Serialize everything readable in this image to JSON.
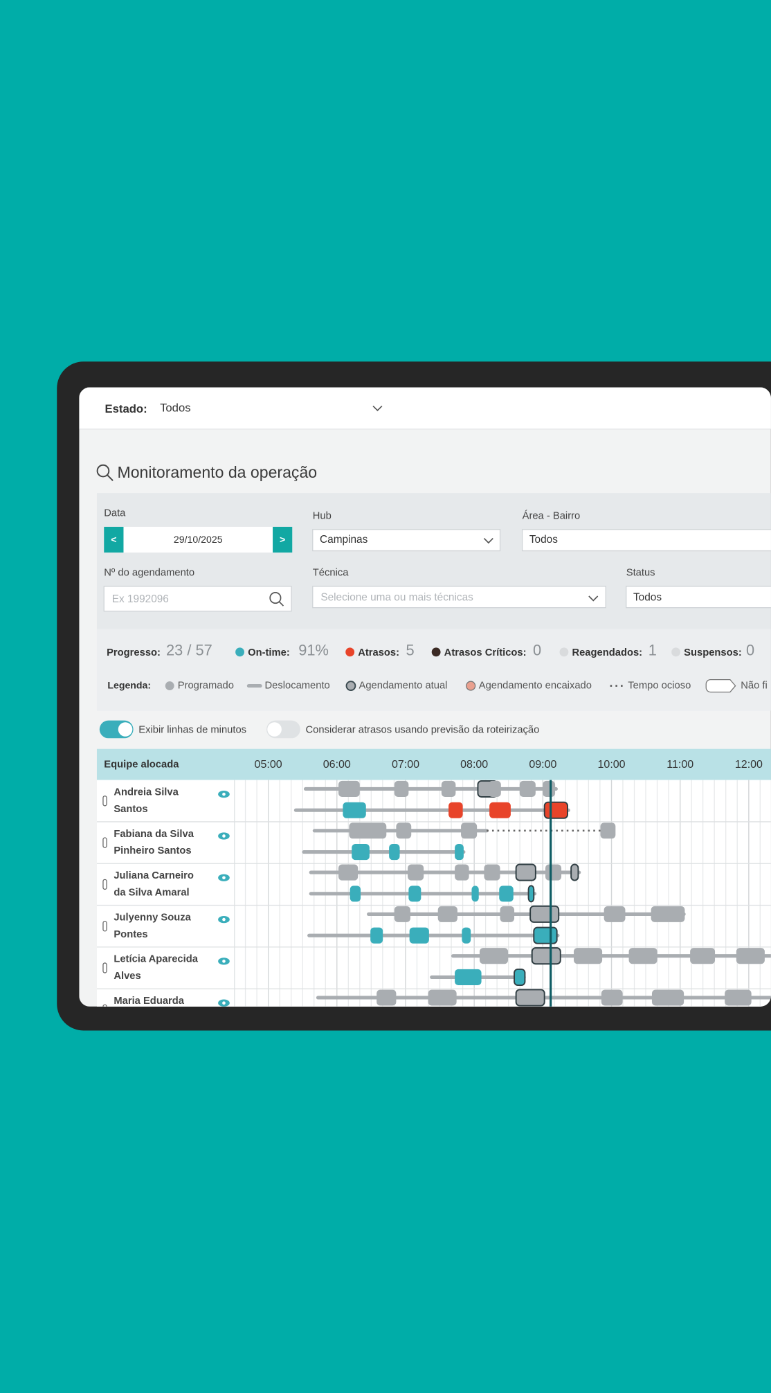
{
  "header": {
    "state_label": "Estado:",
    "state_value": "Todos"
  },
  "title": "Monitoramento da operação",
  "filters": {
    "date_label": "Data",
    "date_prev": "<",
    "date_value": "29/10/2025",
    "date_next": ">",
    "hub_label": "Hub",
    "hub_value": "Campinas",
    "area_label": "Área - Bairro",
    "area_value": "Todos",
    "booking_label": "Nº do agendamento",
    "booking_placeholder": "Ex 1992096",
    "tech_label": "Técnica",
    "tech_placeholder": "Selecione uma ou mais técnicas",
    "status_label": "Status",
    "status_value": "Todos"
  },
  "stats": {
    "progress_label": "Progresso:",
    "progress_value": "23 / 57",
    "ontime_label": "On-time:",
    "ontime_value": "91%",
    "delays_label": "Atrasos:",
    "delays_value": "5",
    "critical_label": "Atrasos Críticos:",
    "critical_value": "0",
    "rescheduled_label": "Reagendados:",
    "rescheduled_value": "1",
    "suspended_label": "Suspensos:",
    "suspended_value": "0"
  },
  "legend": {
    "label": "Legenda:",
    "items": [
      "Programado",
      "Deslocamento",
      "Agendamento atual",
      "Agendamento encaixado",
      "Tempo ocioso",
      "Não fi"
    ]
  },
  "toggles": [
    "Exibir linhas de minutos",
    "Considerar atrasos usando previsão da roteirização"
  ],
  "table": {
    "team_header": "Equipe alocada",
    "hours": [
      "05:00",
      "06:00",
      "07:00",
      "08:00",
      "09:00",
      "10:00",
      "11:00",
      "12:00"
    ],
    "rows": [
      {
        "name_lines": [
          "Andreia Silva",
          "Santos"
        ]
      },
      {
        "name_lines": [
          "Fabiana da Silva",
          "Pinheiro Santos"
        ]
      },
      {
        "name_lines": [
          "Juliana Carneiro",
          "da Silva Amaral"
        ]
      },
      {
        "name_lines": [
          "Julyenny Souza",
          "Pontes"
        ]
      },
      {
        "name_lines": [
          "Letícia Aparecida",
          "Alves"
        ]
      },
      {
        "name_lines": [
          "Maria Eduarda"
        ]
      }
    ]
  }
}
